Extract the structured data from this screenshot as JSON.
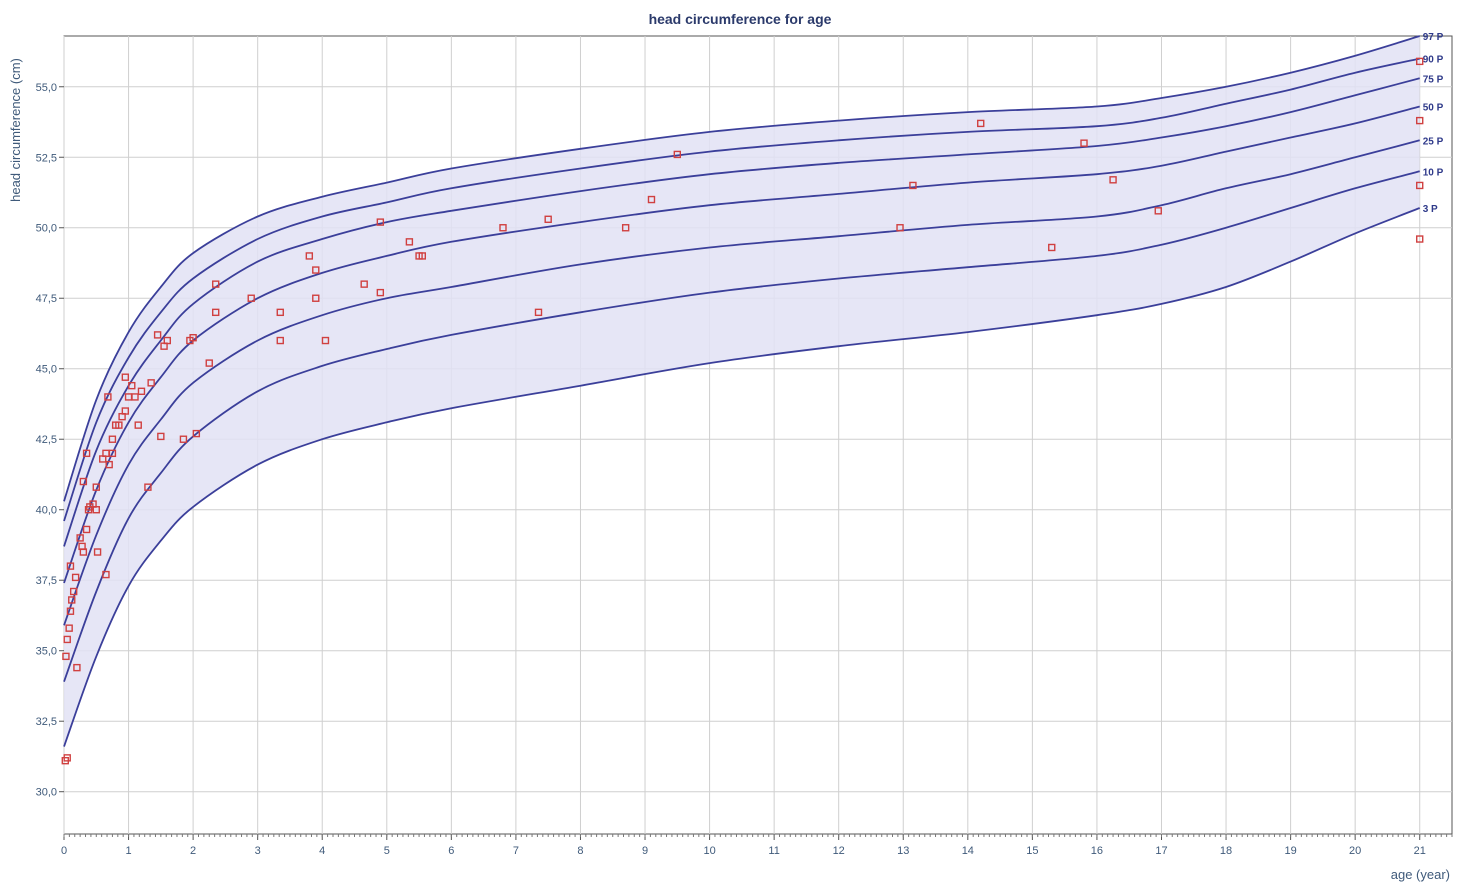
{
  "chart_data": {
    "type": "line",
    "title": "head circumference for age",
    "xlabel": "age (year)",
    "ylabel": "head circumference (cm)",
    "xlim": [
      0,
      21.5
    ],
    "ylim": [
      28.5,
      56.8
    ],
    "x_ticks": [
      0,
      1,
      2,
      3,
      4,
      5,
      6,
      7,
      8,
      9,
      10,
      11,
      12,
      13,
      14,
      15,
      16,
      17,
      18,
      19,
      20,
      21
    ],
    "x_tick_labels": [
      "0",
      "1",
      "2",
      "3",
      "4",
      "5",
      "6",
      "7",
      "8",
      "9",
      "10",
      "11",
      "12",
      "13",
      "14",
      "15",
      "16",
      "17",
      "18",
      "19",
      "20",
      "21"
    ],
    "y_ticks": [
      30,
      32.5,
      35,
      37.5,
      40,
      42.5,
      45,
      47.5,
      50,
      52.5,
      55
    ],
    "y_tick_labels": [
      "30,0",
      "32,5",
      "35,0",
      "37,5",
      "40,0",
      "42,5",
      "45,0",
      "47,5",
      "50,0",
      "52,5",
      "55,0"
    ],
    "grid": true,
    "band_color": "#e2e2f4",
    "curve_color": "#3b3f9a",
    "point_color": "#d04040",
    "x": [
      0,
      0.5,
      1,
      1.5,
      2,
      3,
      4,
      5,
      6,
      8,
      10,
      12,
      14,
      16,
      17,
      18,
      19,
      20,
      21
    ],
    "series": [
      {
        "name": "97 P",
        "values": [
          40.3,
          43.9,
          46.3,
          47.9,
          49.1,
          50.4,
          51.1,
          51.6,
          52.1,
          52.8,
          53.4,
          53.8,
          54.1,
          54.3,
          54.6,
          55.0,
          55.5,
          56.1,
          56.8
        ]
      },
      {
        "name": "90 P",
        "values": [
          39.6,
          43.1,
          45.4,
          47.0,
          48.2,
          49.6,
          50.4,
          50.9,
          51.4,
          52.1,
          52.7,
          53.1,
          53.4,
          53.6,
          53.9,
          54.4,
          54.9,
          55.5,
          56.0
        ]
      },
      {
        "name": "75 P",
        "values": [
          38.7,
          42.1,
          44.4,
          46.0,
          47.3,
          48.8,
          49.6,
          50.2,
          50.6,
          51.3,
          51.9,
          52.3,
          52.6,
          52.9,
          53.2,
          53.6,
          54.1,
          54.7,
          55.3
        ]
      },
      {
        "name": "50 P",
        "values": [
          37.4,
          40.7,
          43.1,
          44.7,
          46.0,
          47.5,
          48.4,
          49.0,
          49.5,
          50.2,
          50.8,
          51.2,
          51.6,
          51.9,
          52.2,
          52.7,
          53.2,
          53.7,
          54.3
        ]
      },
      {
        "name": "25 P",
        "values": [
          35.9,
          39.1,
          41.6,
          43.2,
          44.5,
          46.0,
          46.9,
          47.5,
          47.9,
          48.7,
          49.3,
          49.7,
          50.1,
          50.4,
          50.8,
          51.4,
          51.9,
          52.5,
          53.1
        ]
      },
      {
        "name": "10 P",
        "values": [
          33.9,
          37.1,
          39.7,
          41.3,
          42.6,
          44.2,
          45.1,
          45.7,
          46.2,
          47.0,
          47.7,
          48.2,
          48.6,
          49.0,
          49.4,
          50.0,
          50.7,
          51.4,
          52.0
        ]
      },
      {
        "name": "3 P",
        "values": [
          31.6,
          34.8,
          37.3,
          38.9,
          40.1,
          41.6,
          42.5,
          43.1,
          43.6,
          44.4,
          45.2,
          45.8,
          46.3,
          46.9,
          47.3,
          47.9,
          48.8,
          49.8,
          50.7
        ]
      }
    ],
    "points": [
      {
        "x": 0.02,
        "y": 31.1
      },
      {
        "x": 0.05,
        "y": 31.2
      },
      {
        "x": 0.03,
        "y": 34.8
      },
      {
        "x": 0.05,
        "y": 35.4
      },
      {
        "x": 0.08,
        "y": 35.8
      },
      {
        "x": 0.1,
        "y": 36.4
      },
      {
        "x": 0.12,
        "y": 36.8
      },
      {
        "x": 0.15,
        "y": 37.1
      },
      {
        "x": 0.1,
        "y": 38.0
      },
      {
        "x": 0.18,
        "y": 37.6
      },
      {
        "x": 0.2,
        "y": 34.4
      },
      {
        "x": 0.25,
        "y": 39.0
      },
      {
        "x": 0.28,
        "y": 38.7
      },
      {
        "x": 0.3,
        "y": 38.5
      },
      {
        "x": 0.35,
        "y": 39.3
      },
      {
        "x": 0.38,
        "y": 40.0
      },
      {
        "x": 0.4,
        "y": 40.1
      },
      {
        "x": 0.45,
        "y": 40.2
      },
      {
        "x": 0.5,
        "y": 40.0
      },
      {
        "x": 0.52,
        "y": 38.5
      },
      {
        "x": 0.3,
        "y": 41.0
      },
      {
        "x": 0.35,
        "y": 42.0
      },
      {
        "x": 0.5,
        "y": 40.8
      },
      {
        "x": 0.6,
        "y": 41.8
      },
      {
        "x": 0.65,
        "y": 42.0
      },
      {
        "x": 0.7,
        "y": 41.6
      },
      {
        "x": 0.75,
        "y": 42.5
      },
      {
        "x": 0.8,
        "y": 43.0
      },
      {
        "x": 0.85,
        "y": 43.0
      },
      {
        "x": 0.9,
        "y": 43.3
      },
      {
        "x": 0.95,
        "y": 43.5
      },
      {
        "x": 1.0,
        "y": 44.0
      },
      {
        "x": 1.05,
        "y": 44.4
      },
      {
        "x": 1.1,
        "y": 44.0
      },
      {
        "x": 1.15,
        "y": 43.0
      },
      {
        "x": 1.2,
        "y": 44.2
      },
      {
        "x": 0.68,
        "y": 44.0
      },
      {
        "x": 0.65,
        "y": 37.7
      },
      {
        "x": 0.75,
        "y": 42.0
      },
      {
        "x": 0.95,
        "y": 44.7
      },
      {
        "x": 1.3,
        "y": 40.8
      },
      {
        "x": 1.35,
        "y": 44.5
      },
      {
        "x": 1.45,
        "y": 46.2
      },
      {
        "x": 1.5,
        "y": 42.6
      },
      {
        "x": 1.55,
        "y": 45.8
      },
      {
        "x": 1.6,
        "y": 46.0
      },
      {
        "x": 1.85,
        "y": 42.5
      },
      {
        "x": 1.95,
        "y": 46.0
      },
      {
        "x": 2.0,
        "y": 46.1
      },
      {
        "x": 2.05,
        "y": 42.7
      },
      {
        "x": 2.25,
        "y": 45.2
      },
      {
        "x": 2.35,
        "y": 48.0
      },
      {
        "x": 2.35,
        "y": 47.0
      },
      {
        "x": 2.9,
        "y": 47.5
      },
      {
        "x": 3.35,
        "y": 47.0
      },
      {
        "x": 3.35,
        "y": 46.0
      },
      {
        "x": 3.8,
        "y": 49.0
      },
      {
        "x": 3.9,
        "y": 48.5
      },
      {
        "x": 3.9,
        "y": 47.5
      },
      {
        "x": 4.05,
        "y": 46.0
      },
      {
        "x": 4.65,
        "y": 48.0
      },
      {
        "x": 4.9,
        "y": 47.7
      },
      {
        "x": 4.9,
        "y": 50.2
      },
      {
        "x": 5.35,
        "y": 49.5
      },
      {
        "x": 5.5,
        "y": 49.0
      },
      {
        "x": 5.55,
        "y": 49.0
      },
      {
        "x": 6.8,
        "y": 50.0
      },
      {
        "x": 7.35,
        "y": 47.0
      },
      {
        "x": 7.5,
        "y": 50.3
      },
      {
        "x": 8.7,
        "y": 50.0
      },
      {
        "x": 9.1,
        "y": 51.0
      },
      {
        "x": 9.5,
        "y": 52.6
      },
      {
        "x": 12.95,
        "y": 50.0
      },
      {
        "x": 13.15,
        "y": 51.5
      },
      {
        "x": 14.2,
        "y": 53.7
      },
      {
        "x": 15.3,
        "y": 49.3
      },
      {
        "x": 15.8,
        "y": 53.0
      },
      {
        "x": 16.25,
        "y": 51.7
      },
      {
        "x": 16.95,
        "y": 50.6
      },
      {
        "x": 21.0,
        "y": 55.9
      },
      {
        "x": 21.0,
        "y": 53.8
      },
      {
        "x": 21.0,
        "y": 51.5
      },
      {
        "x": 21.0,
        "y": 49.6
      }
    ]
  }
}
